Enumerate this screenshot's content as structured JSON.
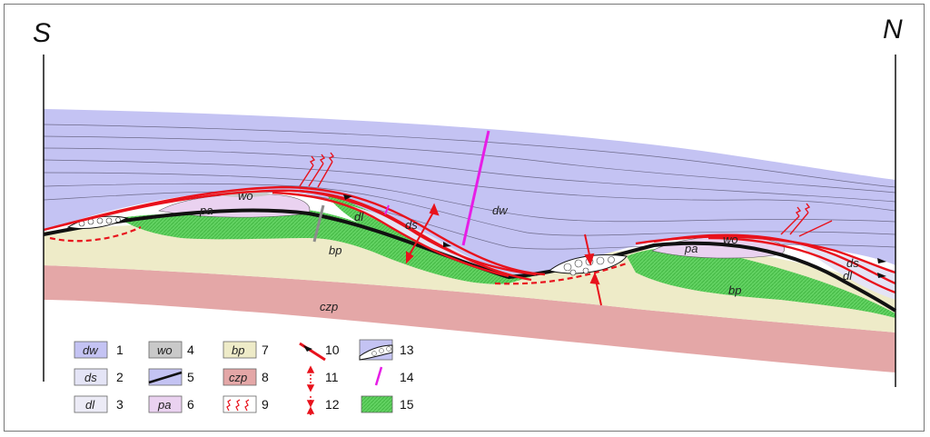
{
  "directions": {
    "south": "S",
    "north": "N"
  },
  "units": {
    "dw": "dw",
    "ds": "ds",
    "dl": "dl",
    "wo": "wo",
    "pa": "pa",
    "bp": "bp",
    "czp": "czp"
  },
  "legend": [
    {
      "code": "dw",
      "num": "1"
    },
    {
      "code": "ds",
      "num": "2"
    },
    {
      "code": "dl",
      "num": "3"
    },
    {
      "code": "wo",
      "num": "4"
    },
    {
      "code": "",
      "num": "5"
    },
    {
      "code": "pa",
      "num": "6"
    },
    {
      "code": "bp",
      "num": "7"
    },
    {
      "code": "czp",
      "num": "8"
    },
    {
      "code": "",
      "num": "9"
    },
    {
      "code": "",
      "num": "10"
    },
    {
      "code": "",
      "num": "11"
    },
    {
      "code": "",
      "num": "12"
    },
    {
      "code": "",
      "num": "13"
    },
    {
      "code": "",
      "num": "14"
    },
    {
      "code": "",
      "num": "15"
    }
  ],
  "colors": {
    "dw": "#c4c3f3",
    "ds": "#e4e4f6",
    "dl": "#ecebf6",
    "wo": "#c9c9c9",
    "pa": "#ead2f0",
    "bp": "#eeebc8",
    "czp": "#e4a7a7",
    "green": "#5fd35f",
    "fault": "#e8121c",
    "magenta": "#e61ee6"
  }
}
